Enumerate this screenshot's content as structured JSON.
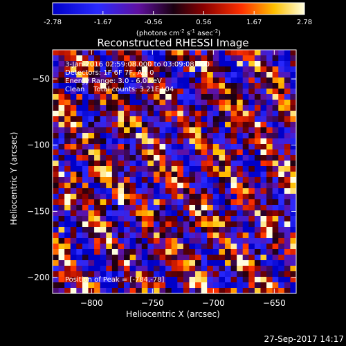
{
  "chart_data": {
    "type": "heatmap",
    "title": "Reconstructed RHESSI Image",
    "xlabel": "Heliocentric X (arcsec)",
    "ylabel": "Heliocentric Y (arcsec)",
    "xlim": [
      -832,
      -632
    ],
    "ylim": [
      -212,
      -28
    ],
    "xticks": [
      -800,
      -750,
      -700,
      -650
    ],
    "yticks": [
      -50,
      -100,
      -150,
      -200
    ],
    "colorbar": {
      "ticks": [
        "-2.78",
        "-1.67",
        "-0.56",
        "0.56",
        "1.67",
        "2.78"
      ],
      "range": [
        -2.78,
        2.78
      ],
      "units_parts": [
        "(photons cm",
        "-2",
        " s",
        "-1",
        " asec",
        "-2",
        ")"
      ]
    },
    "grid_size": [
      41,
      44
    ],
    "pattern": "diagonal stripes running from upper-left to lower-right, random pixel noise",
    "annotations": [
      "3-Jan-2016 02:59:08.000 to 03:09:08.000",
      "Detectors: 1F 6F 7F, Att 0",
      "Energy Range: 3.0 - 6.0 keV",
      "Clean    Total counts: 3.21E+04",
      "Position of Peak = [-784,-78]"
    ],
    "grid": false
  },
  "footer": {
    "timestamp": "27-Sep-2017 14:17"
  }
}
